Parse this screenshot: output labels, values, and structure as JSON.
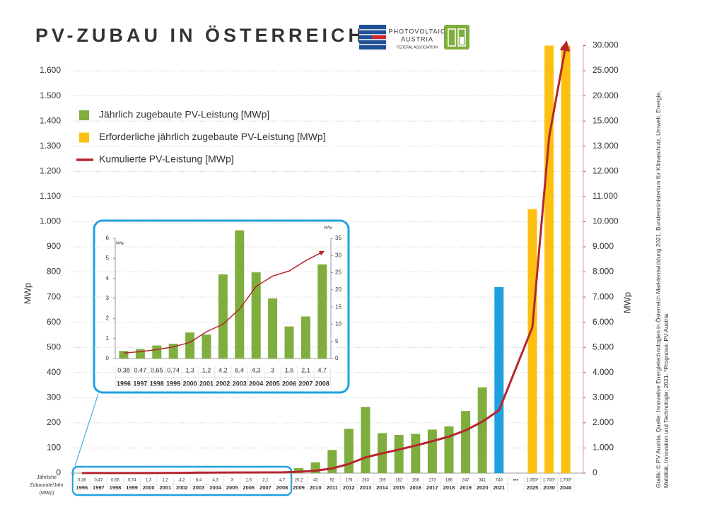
{
  "logo": {
    "lines": [
      "PHOTOVOLTAIC",
      "AUSTRIA",
      "FEDERAL ASSOCIATION"
    ]
  },
  "source": [
    "Grafik: © PV Austria. Quelle: Innovative Energietechnologien in Österreich Marktentwicklung 2021, Bundesministerium für Klimaschutz, Umwelt, Energie,",
    "Mobilität, Innovation und Technologie; 2021. *Prognose: PV Austria."
  ],
  "chart_data": [
    {
      "type": "bar",
      "title": "PV-ZUBAU IN ÖSTERREICH",
      "ylabel": "MWp",
      "y2label": "MWp",
      "row_label": [
        "Jährliche",
        "Zubaurate/Jahr",
        "(MWp)"
      ],
      "gap_marker": "•••",
      "categories": [
        "1996",
        "1997",
        "1998",
        "1999",
        "2000",
        "2001",
        "2002",
        "2003",
        "2004",
        "2005",
        "2006",
        "2007",
        "2008",
        "2009",
        "2010",
        "2011",
        "2012",
        "2013",
        "2014",
        "2015",
        "2016",
        "2017",
        "2018",
        "2019",
        "2020",
        "2021",
        null,
        "2025",
        "2030",
        "2040"
      ],
      "series": [
        {
          "name": "Jährlich zugebaute PV-Leistung [MWp]",
          "type": "bar",
          "color": "#7fae3e",
          "colors": [
            "#7fae3e",
            "#7fae3e",
            "#7fae3e",
            "#7fae3e",
            "#7fae3e",
            "#7fae3e",
            "#7fae3e",
            "#7fae3e",
            "#7fae3e",
            "#7fae3e",
            "#7fae3e",
            "#7fae3e",
            "#7fae3e",
            "#7fae3e",
            "#7fae3e",
            "#7fae3e",
            "#7fae3e",
            "#7fae3e",
            "#7fae3e",
            "#7fae3e",
            "#7fae3e",
            "#7fae3e",
            "#7fae3e",
            "#7fae3e",
            "#7fae3e",
            "#1ea1e0",
            null,
            null,
            null,
            null
          ],
          "values": [
            0.38,
            0.47,
            0.65,
            0.74,
            1.3,
            1.2,
            4.2,
            6.4,
            4.3,
            3,
            1.6,
            2.1,
            4.7,
            20.2,
            43,
            92,
            176,
            263,
            159,
            152,
            156,
            173,
            186,
            247,
            341,
            740,
            null,
            null,
            null,
            null
          ],
          "value_labels": [
            "0,38",
            "0,47",
            "0,65",
            "0,74",
            "1,3",
            "1,2",
            "4,2",
            "6,4",
            "4,3",
            "3",
            "1,6",
            "2,1",
            "4,7",
            "20,2",
            "43",
            "92",
            "176",
            "263",
            "159",
            "152",
            "156",
            "173",
            "186",
            "247",
            "341",
            "740",
            null,
            null,
            null,
            null
          ]
        },
        {
          "name": "Erforderliche jährlich zugebaute PV-Leistung [MWp]",
          "type": "bar",
          "color": "#fdc010",
          "values": [
            null,
            null,
            null,
            null,
            null,
            null,
            null,
            null,
            null,
            null,
            null,
            null,
            null,
            null,
            null,
            null,
            null,
            null,
            null,
            null,
            null,
            null,
            null,
            null,
            null,
            null,
            null,
            1050,
            1700,
            1700
          ],
          "value_labels": [
            null,
            null,
            null,
            null,
            null,
            null,
            null,
            null,
            null,
            null,
            null,
            null,
            null,
            null,
            null,
            null,
            null,
            null,
            null,
            null,
            null,
            null,
            null,
            null,
            null,
            null,
            null,
            "1.050*",
            "1.700*",
            "1.700*"
          ]
        },
        {
          "name": "Kumulierte PV-Leistung [MWp]",
          "type": "line",
          "axis": "y2",
          "color": "#b5262c",
          "arrow": true,
          "x": [
            "1996",
            "1997",
            "1998",
            "1999",
            "2000",
            "2001",
            "2002",
            "2003",
            "2004",
            "2005",
            "2006",
            "2007",
            "2008",
            "2009",
            "2010",
            "2011",
            "2012",
            "2013",
            "2014",
            "2015",
            "2016",
            "2017",
            "2018",
            "2019",
            "2020",
            "2021",
            "2025",
            "2030",
            "2040"
          ],
          "values": [
            2,
            2,
            3,
            3,
            5,
            6,
            10,
            17,
            21,
            24,
            26,
            28,
            32,
            52,
            95,
            187,
            363,
            626,
            785,
            937,
            1096,
            1269,
            1455,
            1702,
            2043,
            2500,
            5800,
            13700,
            30000
          ]
        }
      ],
      "ylim": [
        0,
        1700
      ],
      "yticks": [
        0,
        100,
        200,
        300,
        400,
        500,
        600,
        700,
        800,
        900,
        {
          "value": 1000,
          "label": "1.000"
        },
        {
          "value": 1100,
          "label": "1.100"
        },
        {
          "value": 1200,
          "label": "1.200"
        },
        {
          "value": 1300,
          "label": "1.300"
        },
        {
          "value": 1400,
          "label": "1.400"
        },
        {
          "value": 1500,
          "label": "1.500"
        },
        {
          "value": 1600,
          "label": "1.600"
        }
      ],
      "y2lim": [
        0,
        30000
      ],
      "y2scale": "evenly-spaced-ticks",
      "y2ticks": [
        0,
        {
          "value": 1000,
          "label": "1.000"
        },
        {
          "value": 2000,
          "label": "2.000"
        },
        {
          "value": 3000,
          "label": "3.000"
        },
        {
          "value": 4000,
          "label": "4.000"
        },
        {
          "value": 5000,
          "label": "5.000"
        },
        {
          "value": 6000,
          "label": "6.000"
        },
        {
          "value": 7000,
          "label": "7.000"
        },
        {
          "value": 8000,
          "label": "8.000"
        },
        {
          "value": 9000,
          "label": "9.000"
        },
        {
          "value": 10000,
          "label": "10.000"
        },
        {
          "value": 11000,
          "label": "11.000"
        },
        {
          "value": 12000,
          "label": "12.000"
        },
        {
          "value": 13000,
          "label": "13.000"
        },
        {
          "value": 15000,
          "label": "15.000"
        },
        {
          "value": 20000,
          "label": "20.000"
        },
        {
          "value": 25000,
          "label": "25.000"
        },
        {
          "value": 30000,
          "label": "30.000"
        }
      ],
      "grid": true,
      "legend": "upper left"
    },
    {
      "type": "bar",
      "ylabel": "MWp",
      "y2label": "MWp",
      "categories": [
        "1996",
        "1997",
        "1998",
        "1999",
        "2000",
        "2001",
        "2002",
        "2003",
        "2004",
        "2005",
        "2006",
        "2007",
        "2008"
      ],
      "series": [
        {
          "type": "bar",
          "color": "#7fae3e",
          "values": [
            0.38,
            0.47,
            0.65,
            0.74,
            1.3,
            1.2,
            4.2,
            6.4,
            4.3,
            3,
            1.6,
            2.1,
            4.7
          ],
          "value_labels": [
            "0,38",
            "0,47",
            "0,65",
            "0,74",
            "1,3",
            "1,2",
            "4,2",
            "6,4",
            "4,3",
            "3",
            "1,6",
            "2,1",
            "4,7"
          ]
        },
        {
          "type": "line",
          "axis": "y2",
          "color": "#b5262c",
          "arrow": true,
          "values": [
            1.6,
            2.0,
            2.6,
            3.4,
            4.7,
            7.8,
            10,
            14.4,
            21,
            24,
            25.5,
            28.5,
            31
          ]
        }
      ],
      "ylim": [
        0,
        6
      ],
      "yticks": [
        0,
        1,
        2,
        3,
        4,
        5,
        6
      ],
      "y2lim": [
        0,
        35
      ],
      "y2ticks": [
        0,
        5,
        10,
        15,
        20,
        25,
        30,
        35
      ],
      "grid": false
    }
  ]
}
